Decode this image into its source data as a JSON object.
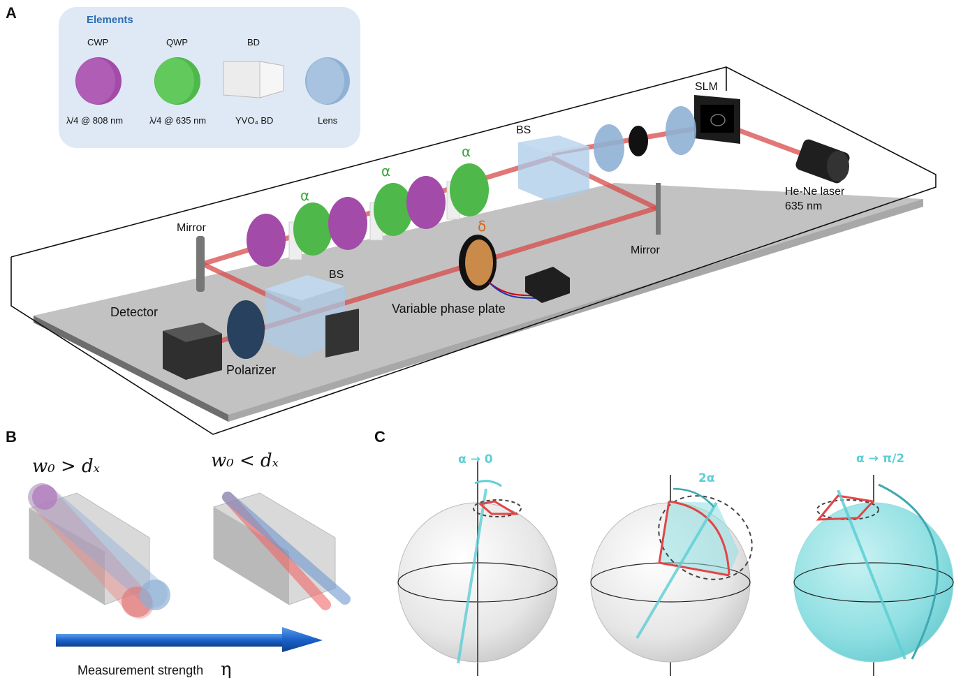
{
  "panels": {
    "a": "A",
    "b": "B",
    "c": "C"
  },
  "legend": {
    "title": "Elements",
    "items": [
      {
        "top": "CWP",
        "bottom": "λ/4 @ 808 nm"
      },
      {
        "top": "QWP",
        "bottom": "λ/4 @ 635 nm"
      },
      {
        "top": "BD",
        "bottom": "YVO₄ BD"
      },
      {
        "top": "",
        "bottom": "Lens"
      }
    ]
  },
  "setup": {
    "slm": "SLM",
    "bs_top": "BS",
    "bs_bottom": "BS",
    "laser_line1": "He-Ne laser",
    "laser_line2": "635 nm",
    "mirror_left": "Mirror",
    "mirror_right": "Mirror",
    "detector": "Detector",
    "polarizer": "Polarizer",
    "phase_plate": "Variable phase plate",
    "alpha": "α",
    "delta": "δ"
  },
  "panel_b": {
    "left_cond": "w₀ > dₓ",
    "right_cond": "w₀ < dₓ",
    "arrow_label": "Measurement strength",
    "arrow_symbol": "η"
  },
  "panel_c": {
    "labels": [
      "α → 0",
      "2α",
      "α → π/2"
    ]
  },
  "colors": {
    "table": "#b8b8b8",
    "beam": "#d84a4a",
    "cwp": "#a24ba8",
    "qwp": "#4fb84a",
    "bs": "#a9cbe8",
    "lens": "#8fb1d4",
    "legend_bg": "#dfe9f5",
    "cyan": "#5ccfd6",
    "arrow_blue": "#1b62c9"
  }
}
